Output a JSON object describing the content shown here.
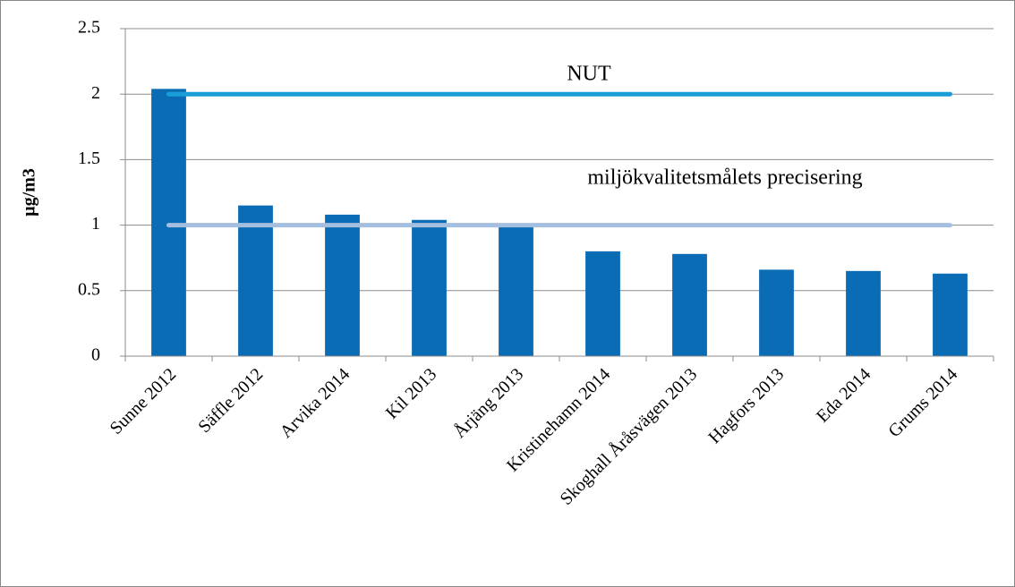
{
  "chart_data": {
    "type": "bar",
    "y_label": "µg/m3",
    "categories": [
      "Sunne 2012",
      "Säffle 2012",
      "Arvika 2014",
      "Kil 2013",
      "Årjäng 2013",
      "Kristinehamn 2014",
      "Skoghall Åråsvägen 2013",
      "Hagfors 2013",
      "Eda 2014",
      "Grums 2014"
    ],
    "values": [
      2.04,
      1.15,
      1.08,
      1.04,
      0.99,
      0.8,
      0.78,
      0.66,
      0.65,
      0.63
    ],
    "color": "#0a6cb5",
    "reference_lines": [
      {
        "name": "NUT",
        "value": 2,
        "color": "#1a9ed8"
      },
      {
        "name": "miljökvalitetsmålets precisering",
        "value": 1,
        "color": "#a4bedf"
      }
    ],
    "ylim": [
      0,
      2.5
    ],
    "yticks": [
      0,
      0.5,
      1,
      1.5,
      2,
      2.5
    ],
    "grid": true
  }
}
